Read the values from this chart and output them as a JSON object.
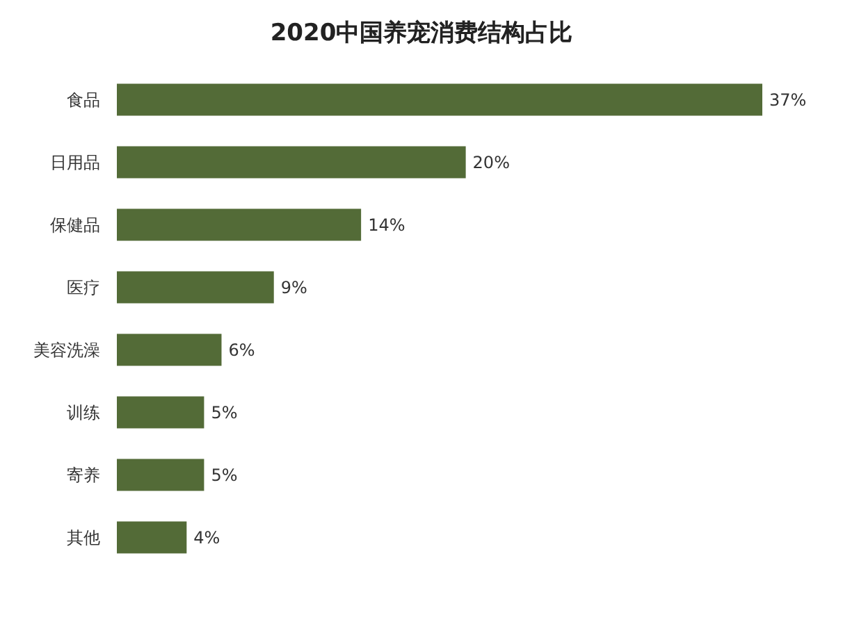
{
  "chart_data": {
    "type": "bar",
    "orientation": "horizontal",
    "title": "2020中国养宠消费结构占比",
    "categories": [
      "食品",
      "日用品",
      "保健品",
      "医疗",
      "美容洗澡",
      "训练",
      "寄养",
      "其他"
    ],
    "values": [
      37,
      20,
      14,
      9,
      6,
      5,
      5,
      4
    ],
    "value_labels": [
      "37%",
      "20%",
      "14%",
      "9%",
      "6%",
      "5%",
      "5%",
      "4%"
    ],
    "color": "#536b37"
  }
}
